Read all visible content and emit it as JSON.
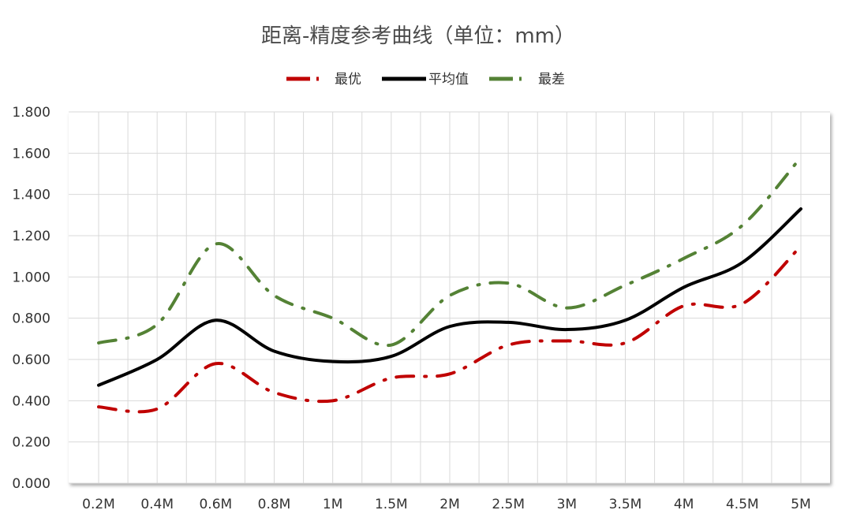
{
  "chart_data": {
    "type": "line",
    "title": "距离-精度参考曲线（单位：mm）",
    "xlabel": "",
    "ylabel": "",
    "categories": [
      "0.2M",
      "0.4M",
      "0.6M",
      "0.8M",
      "1M",
      "1.5M",
      "2M",
      "2.5M",
      "3M",
      "3.5M",
      "4M",
      "4.5M",
      "5M"
    ],
    "ylim": [
      0,
      1.8
    ],
    "yticks": [
      "0.000",
      "0.200",
      "0.400",
      "0.600",
      "0.800",
      "1.000",
      "1.200",
      "1.400",
      "1.600",
      "1.800"
    ],
    "grid": true,
    "legend_position": "top",
    "series": [
      {
        "name": "最优",
        "color": "#c00000",
        "style": "dash-dot",
        "values": [
          0.37,
          0.36,
          0.58,
          0.44,
          0.4,
          0.51,
          0.53,
          0.67,
          0.69,
          0.68,
          0.86,
          0.87,
          1.15
        ]
      },
      {
        "name": "平均值",
        "color": "#000000",
        "style": "solid",
        "values": [
          0.475,
          0.6,
          0.79,
          0.64,
          0.59,
          0.615,
          0.76,
          0.78,
          0.745,
          0.79,
          0.95,
          1.07,
          1.33
        ]
      },
      {
        "name": "最差",
        "color": "#548235",
        "style": "dash-dot",
        "values": [
          0.68,
          0.77,
          1.16,
          0.91,
          0.8,
          0.67,
          0.91,
          0.97,
          0.85,
          0.96,
          1.09,
          1.25,
          1.58
        ]
      }
    ]
  }
}
